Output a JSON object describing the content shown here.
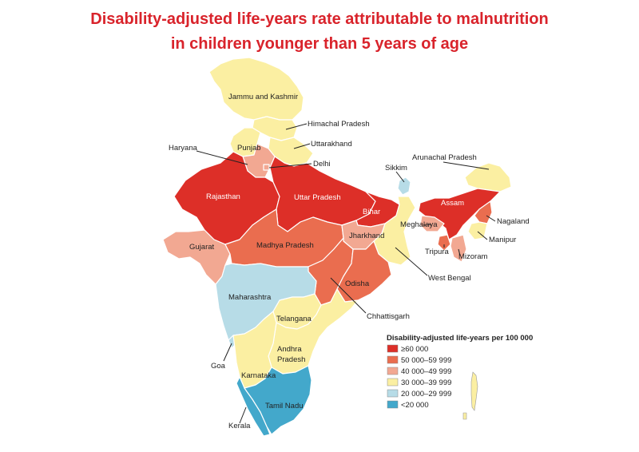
{
  "title": {
    "line1": "Disability-adjusted life-years rate attributable to malnutrition",
    "line2": "in children younger than 5 years of age"
  },
  "colors": {
    "c1": "#dd2f28",
    "c2": "#ea6d4f",
    "c3": "#f2a892",
    "c4": "#fbefa2",
    "c5": "#b7dce7",
    "c6": "#43a8cb"
  },
  "states": [
    {
      "id": "jammu-kashmir",
      "label": "Jammu and Kashmir",
      "class": "c4"
    },
    {
      "id": "himachal-pradesh",
      "label": "Himachal Pradesh",
      "class": "c4"
    },
    {
      "id": "punjab",
      "label": "Punjab",
      "class": "c4"
    },
    {
      "id": "uttarakhand",
      "label": "Uttarakhand",
      "class": "c4"
    },
    {
      "id": "haryana",
      "label": "Haryana",
      "class": "c3"
    },
    {
      "id": "delhi",
      "label": "Delhi",
      "class": "c3"
    },
    {
      "id": "rajasthan",
      "label": "Rajasthan",
      "class": "c1"
    },
    {
      "id": "uttar-pradesh",
      "label": "Uttar Pradesh",
      "class": "c1"
    },
    {
      "id": "bihar",
      "label": "Bihar",
      "class": "c1"
    },
    {
      "id": "sikkim",
      "label": "Sikkim",
      "class": "c5"
    },
    {
      "id": "arunachal-pradesh",
      "label": "Arunachal Pradesh",
      "class": "c4"
    },
    {
      "id": "assam",
      "label": "Assam",
      "class": "c1"
    },
    {
      "id": "meghalaya",
      "label": "Meghalaya",
      "class": "c3"
    },
    {
      "id": "nagaland",
      "label": "Nagaland",
      "class": "c2"
    },
    {
      "id": "manipur",
      "label": "Manipur",
      "class": "c4"
    },
    {
      "id": "tripura",
      "label": "Tripura",
      "class": "c2"
    },
    {
      "id": "mizoram",
      "label": "Mizoram",
      "class": "c3"
    },
    {
      "id": "gujarat",
      "label": "Gujarat",
      "class": "c3"
    },
    {
      "id": "madhya-pradesh",
      "label": "Madhya Pradesh",
      "class": "c2"
    },
    {
      "id": "jharkhand",
      "label": "Jharkhand",
      "class": "c3"
    },
    {
      "id": "west-bengal",
      "label": "West Bengal",
      "class": "c4"
    },
    {
      "id": "odisha",
      "label": "Odisha",
      "class": "c2"
    },
    {
      "id": "chhattisgarh",
      "label": "Chhattisgarh",
      "class": "c2"
    },
    {
      "id": "maharashtra",
      "label": "Maharashtra",
      "class": "c5"
    },
    {
      "id": "telangana",
      "label": "Telangana",
      "class": "c4"
    },
    {
      "id": "andhra-pradesh",
      "label": "Andhra Pradesh",
      "class": "c4"
    },
    {
      "id": "goa",
      "label": "Goa",
      "class": "c5"
    },
    {
      "id": "karnataka",
      "label": "Karnataka",
      "class": "c4"
    },
    {
      "id": "tamil-nadu",
      "label": "Tamil Nadu",
      "class": "c6"
    },
    {
      "id": "kerala",
      "label": "Kerala",
      "class": "c6"
    }
  ],
  "andhra_label": {
    "line1": "Andhra",
    "line2": "Pradesh"
  },
  "legend": {
    "title": "Disability-adjusted life-years per 100 000",
    "items": [
      {
        "label": "≥60 000",
        "class": "c1"
      },
      {
        "label": "50 000–59 999",
        "class": "c2"
      },
      {
        "label": "40 000–49 999",
        "class": "c3"
      },
      {
        "label": "30 000–39 999",
        "class": "c4"
      },
      {
        "label": "20 000–29 999",
        "class": "c5"
      },
      {
        "label": "<20 000",
        "class": "c6"
      }
    ]
  }
}
